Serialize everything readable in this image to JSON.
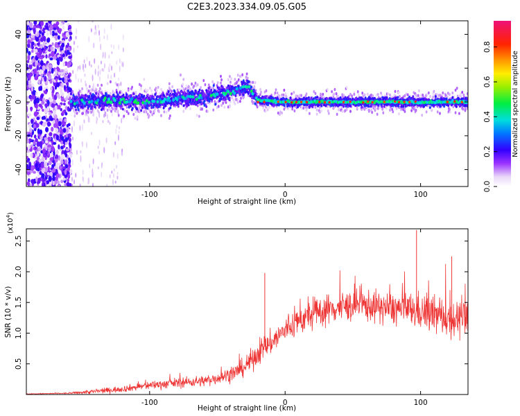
{
  "title": "C2E3.2023.334.09.05.G05",
  "colors": {
    "snr_line": "#ee3333",
    "background": "#ffffff",
    "axes": "#000000"
  },
  "chart_data": [
    {
      "type": "heatmap",
      "title": "",
      "xlabel": "Height of straight line (km)",
      "ylabel": "Frequency (Hz)",
      "xlim": [
        -191,
        135
      ],
      "ylim": [
        -50,
        48
      ],
      "x_ticks": [
        -100,
        0,
        100
      ],
      "x_tick_labels": [
        "-100",
        "0",
        "100"
      ],
      "y_ticks": [
        -40,
        -20,
        0,
        20,
        40
      ],
      "y_tick_labels": [
        "-40",
        "-20",
        "0",
        "20",
        "40"
      ],
      "colorbar": {
        "label": "Normalized spectral amplitude",
        "range": [
          0,
          0.95
        ],
        "ticks": [
          0.0,
          0.2,
          0.4,
          0.6,
          0.8
        ],
        "tick_labels": [
          "0.0",
          "0.2",
          "0.4",
          "0.6",
          "0.8"
        ],
        "colormap": "rainbow (white-violet-blue-cyan-green-yellow-orange-red-magenta)"
      },
      "features": {
        "noise_region_x": [
          -191,
          -158
        ],
        "signal_start_x": -158,
        "ridge_center_hz": [
          [
            -155,
            0
          ],
          [
            -130,
            1
          ],
          [
            -100,
            0
          ],
          [
            -80,
            2
          ],
          [
            -60,
            3
          ],
          [
            -45,
            5
          ],
          [
            -35,
            7
          ],
          [
            -28,
            10
          ],
          [
            -24,
            5
          ],
          [
            -20,
            1
          ],
          [
            0,
            0
          ],
          [
            50,
            0
          ],
          [
            100,
            0
          ],
          [
            135,
            0
          ]
        ],
        "peak_amplitude_region_x": [
          -20,
          135
        ]
      }
    },
    {
      "type": "line",
      "title": "",
      "xlabel": "Height of straight line (km)",
      "ylabel": "SNR (10 * v/v)",
      "y_scale_label": "(x10^4)",
      "xlim": [
        -191,
        135
      ],
      "ylim": [
        0,
        2.7
      ],
      "x_ticks": [
        -100,
        0,
        100
      ],
      "x_tick_labels": [
        "-100",
        "0",
        "100"
      ],
      "y_ticks": [
        0.5,
        1.0,
        1.5,
        2.0,
        2.5
      ],
      "y_tick_labels": [
        "0.5",
        "1.0",
        "1.5",
        "2.0",
        "2.5"
      ],
      "series": [
        {
          "x": [
            -191,
            -160,
            -140,
            -120,
            -100,
            -80,
            -60,
            -50,
            -40,
            -35,
            -30,
            -25,
            -20,
            -15,
            -10,
            -5,
            0,
            10,
            20,
            30,
            40,
            50,
            60,
            70,
            80,
            90,
            100,
            110,
            120,
            130,
            135
          ],
          "y": [
            0.01,
            0.02,
            0.05,
            0.09,
            0.15,
            0.19,
            0.22,
            0.27,
            0.33,
            0.38,
            0.45,
            0.55,
            0.68,
            0.78,
            0.85,
            0.95,
            1.05,
            1.2,
            1.3,
            1.38,
            1.42,
            1.45,
            1.45,
            1.42,
            1.4,
            1.38,
            1.35,
            1.3,
            1.25,
            1.22,
            1.2
          ],
          "variability": [
            0.005,
            0.01,
            0.04,
            0.05,
            0.07,
            0.08,
            0.09,
            0.1,
            0.12,
            0.14,
            0.15,
            0.18,
            0.2,
            0.2,
            0.2,
            0.2,
            0.22,
            0.24,
            0.25,
            0.25,
            0.25,
            0.25,
            0.26,
            0.26,
            0.27,
            0.28,
            0.3,
            0.3,
            0.32,
            0.3,
            0.3
          ]
        }
      ],
      "peaks": [
        {
          "x": -15,
          "y": 1.98
        },
        {
          "x": 97,
          "y": 2.68
        },
        {
          "x": 123,
          "y": 2.25
        }
      ]
    }
  ]
}
